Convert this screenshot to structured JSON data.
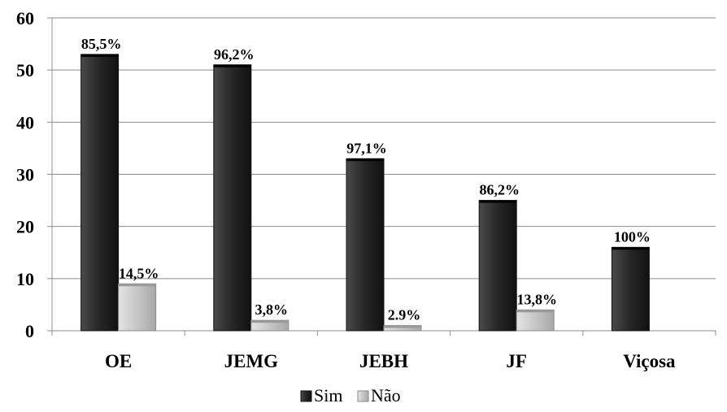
{
  "chart_data": {
    "type": "bar",
    "categories": [
      "OE",
      "JEMG",
      "JEBH",
      "JF",
      "Viçosa"
    ],
    "ylim": [
      0,
      60
    ],
    "yticks": [
      "0",
      "10",
      "20",
      "30",
      "40",
      "50",
      "60"
    ],
    "grid": true,
    "legend_position": "bottom",
    "series": [
      {
        "name": "Sim",
        "values": [
          53,
          51,
          33,
          25,
          16
        ],
        "labels": [
          "85,5%",
          "96,2%",
          "97,1%",
          "86,2%",
          "100%"
        ],
        "color": "#222222"
      },
      {
        "name": "Não",
        "values": [
          9,
          2,
          1,
          4,
          0
        ],
        "labels": [
          "14,5%",
          "3,8%",
          "2.9%",
          "13,8%",
          ""
        ],
        "color": "#c8c8c8"
      }
    ]
  }
}
